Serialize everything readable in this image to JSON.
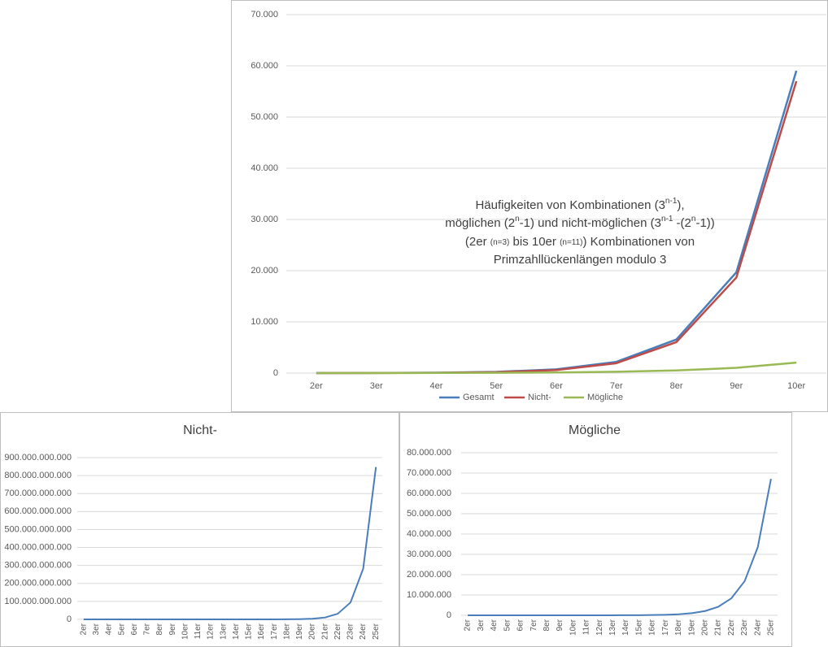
{
  "chart_data": [
    {
      "type": "line",
      "title": [
        [
          {
            "text": "Häufigkeiten von Kombinationen (3"
          },
          {
            "text": "n-1",
            "script": "super"
          },
          {
            "text": "),"
          }
        ],
        [
          {
            "text": "möglichen (2"
          },
          {
            "text": "n",
            "script": "super"
          },
          {
            "text": "-1) und nicht-möglichen (3"
          },
          {
            "text": "n-1",
            "script": "super"
          },
          {
            "text": " -(2"
          },
          {
            "text": "n",
            "script": "super"
          },
          {
            "text": "-1))"
          }
        ],
        [
          {
            "text": "(2er "
          },
          {
            "text": "(n=3)",
            "script": "small"
          },
          {
            "text": " bis 10er "
          },
          {
            "text": "(n=11)",
            "script": "small"
          },
          {
            "text": ") Kombinationen von"
          }
        ],
        [
          {
            "text": "Primzahllückenlängen modulo 3"
          }
        ]
      ],
      "categories": [
        "2er",
        "3er",
        "4er",
        "5er",
        "6er",
        "7er",
        "8er",
        "9er",
        "10er"
      ],
      "series": [
        {
          "name": "Gesamt",
          "color": "#4a7ebb",
          "values": [
            9,
            27,
            81,
            243,
            729,
            2187,
            6561,
            19683,
            59049
          ]
        },
        {
          "name": "Nicht-",
          "color": "#be4b48",
          "values": [
            2,
            12,
            50,
            180,
            602,
            1932,
            6050,
            18660,
            57002
          ]
        },
        {
          "name": "Mögliche",
          "color": "#98b954",
          "values": [
            7,
            15,
            31,
            63,
            127,
            255,
            511,
            1023,
            2047
          ]
        }
      ],
      "ylim": [
        0,
        70000
      ],
      "yticks": [
        0,
        {
          "value": 10000,
          "label": "10.000"
        },
        {
          "value": 20000,
          "label": "20.000"
        },
        {
          "value": 30000,
          "label": "30.000"
        },
        {
          "value": 40000,
          "label": "40.000"
        },
        {
          "value": 50000,
          "label": "50.000"
        },
        {
          "value": 60000,
          "label": "60.000"
        },
        {
          "value": 70000,
          "label": "70.000"
        }
      ],
      "grid": true,
      "legend": "bottom"
    },
    {
      "type": "line",
      "title": "Nicht-",
      "categories": [
        "2er",
        "3er",
        "4er",
        "5er",
        "6er",
        "7er",
        "8er",
        "9er",
        "10er",
        "11er",
        "12er",
        "13er",
        "14er",
        "15er",
        "16er",
        "17er",
        "18er",
        "19er",
        "20er",
        "21er",
        "22er",
        "23er",
        "24er",
        "25er"
      ],
      "values": [
        2,
        12,
        50,
        180,
        602,
        1932,
        6050,
        18660,
        57002,
        173052,
        523250,
        1577940,
        4750202,
        14283372,
        42915650,
        128878020,
        386896202,
        1161212892,
        3484687250,
        10456158900,
        31372671002,
        94126401612,
        282395982050,
        847221500580
      ],
      "color": "#4a7ebb",
      "ylim": [
        0,
        900000000000
      ],
      "yticks": [
        0,
        {
          "value": 100000000000,
          "label": "100.000.000.000"
        },
        {
          "value": 200000000000,
          "label": "200.000.000.000"
        },
        {
          "value": 300000000000,
          "label": "300.000.000.000"
        },
        {
          "value": 400000000000,
          "label": "400.000.000.000"
        },
        {
          "value": 500000000000,
          "label": "500.000.000.000"
        },
        {
          "value": 600000000000,
          "label": "600.000.000.000"
        },
        {
          "value": 700000000000,
          "label": "700.000.000.000"
        },
        {
          "value": 800000000000,
          "label": "800.000.000.000"
        },
        {
          "value": 900000000000,
          "label": "900.000.000.000"
        }
      ],
      "grid": true
    },
    {
      "type": "line",
      "title": "Mögliche",
      "categories": [
        "2er",
        "3er",
        "4er",
        "5er",
        "6er",
        "7er",
        "8er",
        "9er",
        "10er",
        "11er",
        "12er",
        "13er",
        "14er",
        "15er",
        "16er",
        "17er",
        "18er",
        "19er",
        "20er",
        "21er",
        "22er",
        "23er",
        "24er",
        "25er"
      ],
      "values": [
        7,
        15,
        31,
        63,
        127,
        255,
        511,
        1023,
        2047,
        4095,
        8191,
        16383,
        32767,
        65535,
        131071,
        262143,
        524287,
        1048575,
        2097151,
        4194303,
        8388607,
        16777215,
        33554431,
        67108863
      ],
      "color": "#4a7ebb",
      "ylim": [
        0,
        80000000
      ],
      "yticks": [
        0,
        {
          "value": 10000000,
          "label": "10.000.000"
        },
        {
          "value": 20000000,
          "label": "20.000.000"
        },
        {
          "value": 30000000,
          "label": "30.000.000"
        },
        {
          "value": 40000000,
          "label": "40.000.000"
        },
        {
          "value": 50000000,
          "label": "50.000.000"
        },
        {
          "value": 60000000,
          "label": "60.000.000"
        },
        {
          "value": 70000000,
          "label": "70.000.000"
        },
        {
          "value": 80000000,
          "label": "80.000.000"
        }
      ],
      "grid": true
    }
  ]
}
